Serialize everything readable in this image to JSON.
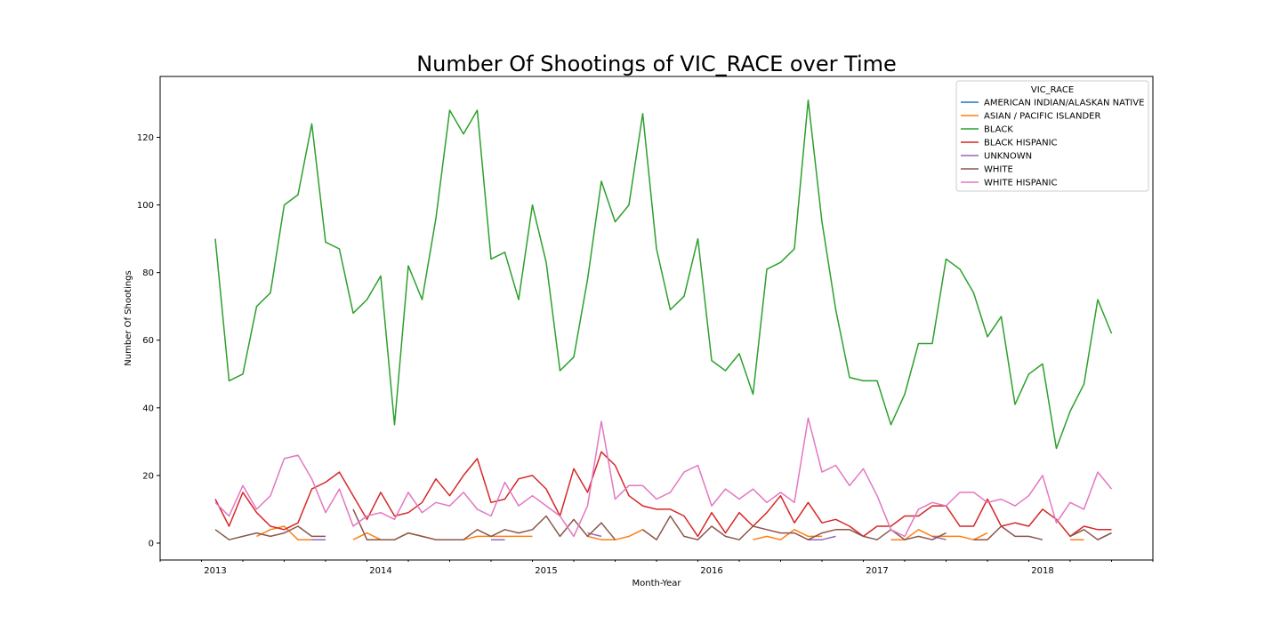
{
  "chart_data": {
    "type": "line",
    "title": "Number Of Shootings of VIC_RACE over Time",
    "xlabel": "Month-Year",
    "ylabel": "Number Of Shootings",
    "xlim": [
      "2012-09",
      "2018-09"
    ],
    "ylim": [
      -5,
      138
    ],
    "x_ticks": [
      {
        "x": "2013-01",
        "label": "2013"
      },
      {
        "x": "2014-01",
        "label": "2014"
      },
      {
        "x": "2015-01",
        "label": "2015"
      },
      {
        "x": "2016-01",
        "label": "2016"
      },
      {
        "x": "2017-01",
        "label": "2017"
      },
      {
        "x": "2018-01",
        "label": "2018"
      }
    ],
    "y_ticks": [
      0,
      20,
      40,
      60,
      80,
      100,
      120
    ],
    "grid": false,
    "legend": {
      "title": "VIC_RACE",
      "position": "top-right"
    },
    "x": [
      "2013-01",
      "2013-02",
      "2013-03",
      "2013-04",
      "2013-05",
      "2013-06",
      "2013-07",
      "2013-08",
      "2013-09",
      "2013-10",
      "2013-11",
      "2013-12",
      "2014-01",
      "2014-02",
      "2014-03",
      "2014-04",
      "2014-05",
      "2014-06",
      "2014-07",
      "2014-08",
      "2014-09",
      "2014-10",
      "2014-11",
      "2014-12",
      "2015-01",
      "2015-02",
      "2015-03",
      "2015-04",
      "2015-05",
      "2015-06",
      "2015-07",
      "2015-08",
      "2015-09",
      "2015-10",
      "2015-11",
      "2015-12",
      "2016-01",
      "2016-02",
      "2016-03",
      "2016-04",
      "2016-05",
      "2016-06",
      "2016-07",
      "2016-08",
      "2016-09",
      "2016-10",
      "2016-11",
      "2016-12",
      "2017-01",
      "2017-02",
      "2017-03",
      "2017-04",
      "2017-05",
      "2017-06",
      "2017-07",
      "2017-08",
      "2017-09",
      "2017-10",
      "2017-11",
      "2017-12",
      "2018-01",
      "2018-02",
      "2018-03",
      "2018-04",
      "2018-05",
      "2018-06"
    ],
    "series": [
      {
        "name": "AMERICAN INDIAN/ALASKAN NATIVE",
        "color": "#1f77b4",
        "values": [
          null,
          null,
          null,
          null,
          null,
          null,
          null,
          null,
          null,
          null,
          null,
          null,
          null,
          null,
          null,
          null,
          null,
          null,
          null,
          null,
          null,
          null,
          null,
          null,
          null,
          null,
          null,
          null,
          null,
          null,
          null,
          null,
          null,
          null,
          null,
          null,
          null,
          null,
          null,
          null,
          null,
          null,
          null,
          null,
          null,
          null,
          null,
          null,
          null,
          null,
          null,
          null,
          null,
          null,
          null,
          null,
          null,
          null,
          null,
          null,
          null,
          null,
          null,
          null,
          null,
          null
        ]
      },
      {
        "name": "ASIAN / PACIFIC ISLANDER",
        "color": "#ff7f0e",
        "values": [
          null,
          null,
          null,
          2,
          4,
          5,
          1,
          1,
          1,
          null,
          1,
          3,
          1,
          1,
          3,
          2,
          1,
          1,
          1,
          2,
          2,
          2,
          2,
          2,
          null,
          null,
          null,
          2,
          1,
          1,
          2,
          4,
          1,
          null,
          null,
          null,
          null,
          null,
          null,
          1,
          2,
          1,
          4,
          2,
          2,
          null,
          null,
          null,
          null,
          1,
          1,
          4,
          2,
          2,
          2,
          1,
          3,
          null,
          null,
          null,
          2,
          null,
          1,
          1,
          null,
          null
        ]
      },
      {
        "name": "BLACK",
        "color": "#2ca02c",
        "values": [
          90,
          48,
          50,
          70,
          74,
          100,
          103,
          124,
          89,
          87,
          68,
          72,
          79,
          35,
          82,
          72,
          96,
          128,
          121,
          128,
          84,
          86,
          72,
          100,
          83,
          51,
          55,
          78,
          107,
          95,
          100,
          127,
          87,
          69,
          73,
          90,
          54,
          51,
          56,
          44,
          81,
          83,
          87,
          131,
          95,
          69,
          49,
          48,
          48,
          35,
          44,
          59,
          59,
          84,
          81,
          74,
          61,
          67,
          41,
          50,
          53,
          28,
          39,
          47,
          72,
          62
        ]
      },
      {
        "name": "BLACK HISPANIC",
        "color": "#d62728",
        "values": [
          13,
          5,
          15,
          9,
          5,
          4,
          6,
          16,
          18,
          21,
          14,
          7,
          15,
          8,
          9,
          12,
          19,
          14,
          20,
          25,
          12,
          13,
          19,
          20,
          16,
          8,
          22,
          15,
          27,
          23,
          14,
          11,
          10,
          10,
          8,
          2,
          9,
          3,
          9,
          5,
          9,
          14,
          6,
          12,
          6,
          7,
          5,
          2,
          5,
          5,
          8,
          8,
          11,
          11,
          5,
          5,
          13,
          5,
          6,
          5,
          10,
          7,
          2,
          5,
          4,
          4
        ]
      },
      {
        "name": "UNKNOWN",
        "color": "#9467bd",
        "values": [
          null,
          null,
          null,
          null,
          null,
          null,
          null,
          1,
          1,
          null,
          null,
          null,
          null,
          null,
          null,
          null,
          null,
          null,
          null,
          null,
          1,
          1,
          null,
          null,
          null,
          null,
          null,
          3,
          2,
          null,
          null,
          null,
          null,
          null,
          null,
          null,
          null,
          null,
          null,
          null,
          null,
          null,
          null,
          1,
          1,
          2,
          null,
          null,
          null,
          null,
          null,
          null,
          2,
          1,
          null,
          null,
          null,
          null,
          null,
          null,
          null,
          null,
          null,
          null,
          1,
          3
        ]
      },
      {
        "name": "WHITE",
        "color": "#8c564b",
        "values": [
          4,
          1,
          2,
          3,
          2,
          3,
          5,
          2,
          2,
          null,
          10,
          1,
          1,
          1,
          3,
          2,
          1,
          1,
          1,
          4,
          2,
          4,
          3,
          4,
          8,
          2,
          7,
          2,
          6,
          1,
          null,
          4,
          1,
          8,
          2,
          1,
          5,
          2,
          1,
          5,
          4,
          3,
          3,
          1,
          3,
          4,
          4,
          2,
          1,
          4,
          1,
          2,
          1,
          3,
          null,
          1,
          1,
          5,
          2,
          2,
          1,
          null,
          2,
          4,
          1,
          3
        ]
      },
      {
        "name": "WHITE HISPANIC",
        "color": "#e377c2",
        "values": [
          12,
          8,
          17,
          10,
          14,
          25,
          26,
          19,
          9,
          16,
          5,
          8,
          9,
          7,
          15,
          9,
          12,
          11,
          15,
          10,
          8,
          18,
          11,
          14,
          11,
          8,
          2,
          11,
          36,
          13,
          17,
          17,
          13,
          15,
          21,
          23,
          11,
          16,
          13,
          16,
          12,
          15,
          12,
          37,
          21,
          23,
          17,
          22,
          14,
          4,
          2,
          10,
          12,
          11,
          15,
          15,
          12,
          13,
          11,
          14,
          20,
          6,
          12,
          10,
          21,
          16
        ]
      }
    ]
  }
}
